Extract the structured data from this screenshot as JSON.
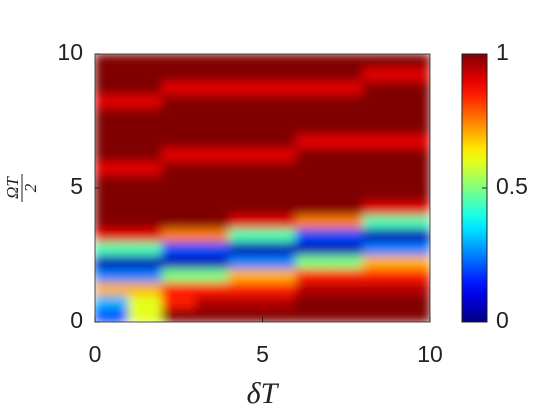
{
  "chart_data": {
    "type": "heatmap",
    "x_label": "δT",
    "y_label_numerator": "ΩT",
    "y_label_denominator": "2",
    "x": [
      0.5,
      1.5,
      2.5,
      3.5,
      4.5,
      5.5,
      6.5,
      7.5,
      8.5,
      9.5
    ],
    "y": [
      0.25,
      0.75,
      1.25,
      1.75,
      2.25,
      2.75,
      3.25,
      3.75,
      4.25,
      4.75,
      5.25,
      5.75,
      6.25,
      6.75,
      7.25,
      7.75,
      8.25,
      8.75,
      9.25,
      9.75
    ],
    "z": [
      [
        0.2,
        0.6,
        1,
        1,
        1,
        1,
        1,
        1,
        1,
        1
      ],
      [
        0.3,
        0.6,
        0.85,
        0.95,
        0.95,
        0.95,
        1,
        1,
        1,
        1
      ],
      [
        0.7,
        0.7,
        0.85,
        0.85,
        0.85,
        0.85,
        0.95,
        0.95,
        0.95,
        0.95
      ],
      [
        0.25,
        0.25,
        0.5,
        0.5,
        0.7,
        0.7,
        0.85,
        0.85,
        0.85,
        0.85
      ],
      [
        0.05,
        0.05,
        0.05,
        0.05,
        0.25,
        0.25,
        0.5,
        0.5,
        0.7,
        0.7
      ],
      [
        0.45,
        0.45,
        0.2,
        0.2,
        0.05,
        0.05,
        0.05,
        0.05,
        0.25,
        0.25
      ],
      [
        0.9,
        0.9,
        0.75,
        0.75,
        0.45,
        0.45,
        0.2,
        0.2,
        0.05,
        0.05
      ],
      [
        1,
        1,
        1,
        1,
        0.9,
        0.9,
        0.75,
        0.75,
        0.45,
        0.45
      ],
      [
        1,
        1,
        1,
        1,
        1,
        1,
        1,
        1,
        0.9,
        0.9
      ],
      [
        1,
        1,
        1,
        1,
        1,
        1,
        1,
        1,
        1,
        1
      ],
      [
        1,
        1,
        1,
        1,
        1,
        1,
        1,
        1,
        1,
        1
      ],
      [
        0.9,
        0.9,
        1,
        1,
        1,
        1,
        1,
        1,
        1,
        1
      ],
      [
        1,
        1,
        0.9,
        0.9,
        0.9,
        0.9,
        1,
        1,
        1,
        1
      ],
      [
        1,
        1,
        1,
        1,
        1,
        1,
        0.9,
        0.9,
        0.9,
        0.9
      ],
      [
        1,
        1,
        1,
        1,
        1,
        1,
        1,
        1,
        1,
        1
      ],
      [
        1,
        1,
        1,
        1,
        1,
        1,
        1,
        1,
        1,
        1
      ],
      [
        0.9,
        0.9,
        1,
        1,
        1,
        1,
        1,
        1,
        1,
        1
      ],
      [
        1,
        1,
        0.9,
        0.9,
        0.9,
        0.9,
        0.9,
        0.9,
        1,
        1
      ],
      [
        1,
        1,
        1,
        1,
        1,
        1,
        1,
        1,
        0.9,
        0.9
      ],
      [
        1,
        1,
        1,
        1,
        1,
        1,
        1,
        1,
        1,
        1
      ]
    ],
    "colormap": "jet",
    "xlim": [
      0,
      10
    ],
    "ylim": [
      0,
      10
    ],
    "xticks": [
      0,
      5,
      10
    ],
    "yticks": [
      0,
      5,
      10
    ],
    "clim": [
      0,
      1
    ],
    "cticks": [
      0,
      0.5,
      1
    ]
  }
}
